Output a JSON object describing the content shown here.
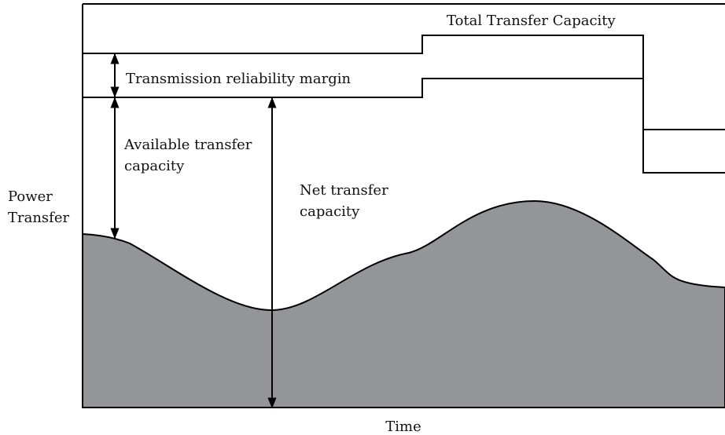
{
  "labels": {
    "total_transfer_capacity": "Total Transfer Capacity",
    "transmission_reliability_margin": "Transmission reliability margin",
    "available_transfer_capacity": [
      "Available transfer",
      "capacity"
    ],
    "net_transfer_capacity": [
      "Net transfer",
      "capacity"
    ],
    "y_axis": [
      "Power",
      "Transfer"
    ],
    "x_axis": "Time"
  }
}
